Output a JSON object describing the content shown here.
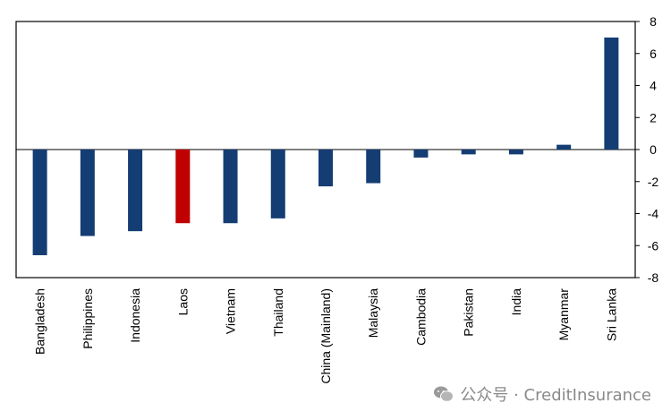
{
  "chart_data": {
    "type": "bar",
    "categories": [
      "Bangladesh",
      "Philippines",
      "Indonesia",
      "Laos",
      "Vietnam",
      "Thailand",
      "China (Mainland)",
      "Malaysia",
      "Cambodia",
      "Pakistan",
      "India",
      "Myanmar",
      "Sri Lanka"
    ],
    "values": [
      -6.6,
      -5.4,
      -5.1,
      -4.6,
      -4.6,
      -4.3,
      -2.3,
      -2.1,
      -0.5,
      -0.3,
      -0.3,
      0.3,
      7.0
    ],
    "colors": [
      "#143d73",
      "#143d73",
      "#143d73",
      "#c00000",
      "#143d73",
      "#143d73",
      "#143d73",
      "#143d73",
      "#143d73",
      "#143d73",
      "#143d73",
      "#143d73",
      "#143d73"
    ],
    "ylim": [
      -8,
      8
    ],
    "yticks": [
      8,
      6,
      4,
      2,
      0,
      -2,
      -4,
      -6,
      -8
    ],
    "ytick_labels": [
      "8",
      "6",
      "4",
      "2",
      "0",
      "-2",
      "-4",
      "-6",
      "-8"
    ],
    "y_axis_position": "right",
    "grid": false,
    "title": "",
    "xlabel": "",
    "ylabel": ""
  },
  "watermark": {
    "icon": "wechat-icon",
    "text": "公众号 · CreditInsurance"
  }
}
